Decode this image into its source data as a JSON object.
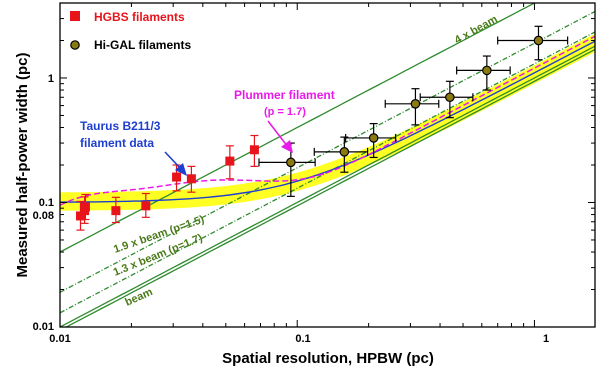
{
  "chart_data": {
    "type": "scatter",
    "title": "",
    "xlabel": "Spatial resolution, HPBW (pc)",
    "ylabel": "Measured half-power width (pc)",
    "x_scale": "log",
    "y_scale": "log",
    "xlim": [
      0.01,
      1.8
    ],
    "ylim": [
      0.01,
      4.0
    ],
    "x_ticks": [
      {
        "value": 0.01,
        "label": "0.01"
      },
      {
        "value": 0.1,
        "label": "0.1"
      },
      {
        "value": 1,
        "label": "1"
      }
    ],
    "y_ticks": [
      {
        "value": 0.01,
        "label": "0.01"
      },
      {
        "value": 0.08,
        "label": "0.08"
      },
      {
        "value": 0.1,
        "label": "0.1"
      },
      {
        "value": 1,
        "label": "1"
      }
    ],
    "grid": false,
    "legend_position": "top-left",
    "colors": {
      "hgbs": "#e8141b",
      "higal_fill": "#8a7a12",
      "beam_lines": "#2e8b2e",
      "plummer": "#e81ce8",
      "taurus": "#1f3fd1",
      "band": "#ffff24",
      "beam_label": "#4a7a1a"
    },
    "series": [
      {
        "name": "HGBS filaments",
        "marker": "square",
        "color": "#e8141b",
        "points": [
          {
            "x": 0.0122,
            "y": 0.078,
            "yerr_lo": 0.018,
            "yerr_hi": 0.024
          },
          {
            "x": 0.0127,
            "y": 0.086,
            "yerr_lo": 0.018,
            "yerr_hi": 0.025
          },
          {
            "x": 0.0128,
            "y": 0.092,
            "yerr_lo": 0.019,
            "yerr_hi": 0.024
          },
          {
            "x": 0.0172,
            "y": 0.086,
            "yerr_lo": 0.017,
            "yerr_hi": 0.024
          },
          {
            "x": 0.023,
            "y": 0.094,
            "yerr_lo": 0.018,
            "yerr_hi": 0.024
          },
          {
            "x": 0.031,
            "y": 0.16,
            "yerr_lo": 0.036,
            "yerr_hi": 0.04
          },
          {
            "x": 0.0358,
            "y": 0.155,
            "yerr_lo": 0.034,
            "yerr_hi": 0.04
          },
          {
            "x": 0.052,
            "y": 0.215,
            "yerr_lo": 0.06,
            "yerr_hi": 0.07
          },
          {
            "x": 0.066,
            "y": 0.265,
            "yerr_lo": 0.07,
            "yerr_hi": 0.08
          }
        ]
      },
      {
        "name": "Hi-GAL filaments",
        "marker": "circle",
        "color": "#8a7a12",
        "points": [
          {
            "x": 0.094,
            "y": 0.21,
            "xerr_lo": 0.025,
            "xerr_hi": 0.025,
            "yerr_lo": 0.098,
            "yerr_hi": 0.09
          },
          {
            "x": 0.158,
            "y": 0.255,
            "xerr_lo": 0.04,
            "xerr_hi": 0.04,
            "yerr_lo": 0.08,
            "yerr_hi": 0.08
          },
          {
            "x": 0.21,
            "y": 0.33,
            "xerr_lo": 0.05,
            "xerr_hi": 0.05,
            "yerr_lo": 0.1,
            "yerr_hi": 0.1
          },
          {
            "x": 0.315,
            "y": 0.62,
            "xerr_lo": 0.08,
            "xerr_hi": 0.08,
            "yerr_lo": 0.2,
            "yerr_hi": 0.2
          },
          {
            "x": 0.44,
            "y": 0.7,
            "xerr_lo": 0.11,
            "xerr_hi": 0.11,
            "yerr_lo": 0.22,
            "yerr_hi": 0.24
          },
          {
            "x": 0.63,
            "y": 1.15,
            "xerr_lo": 0.16,
            "xerr_hi": 0.16,
            "yerr_lo": 0.35,
            "yerr_hi": 0.35
          },
          {
            "x": 1.04,
            "y": 2.0,
            "xerr_lo": 0.34,
            "xerr_hi": 0.34,
            "yerr_lo": 0.6,
            "yerr_hi": 0.6
          }
        ]
      }
    ],
    "annotations": {
      "plummer_label": "Plummer filament",
      "plummer_param": "(p = 1.7)",
      "taurus_line1": "Taurus B211/3",
      "taurus_line2": "filament data",
      "beam4": "4 x beam",
      "beam19": "1.9 x beam (p=1.5)",
      "beam13": "1.3 x beam (p=1.7)",
      "beam1": "beam"
    }
  }
}
